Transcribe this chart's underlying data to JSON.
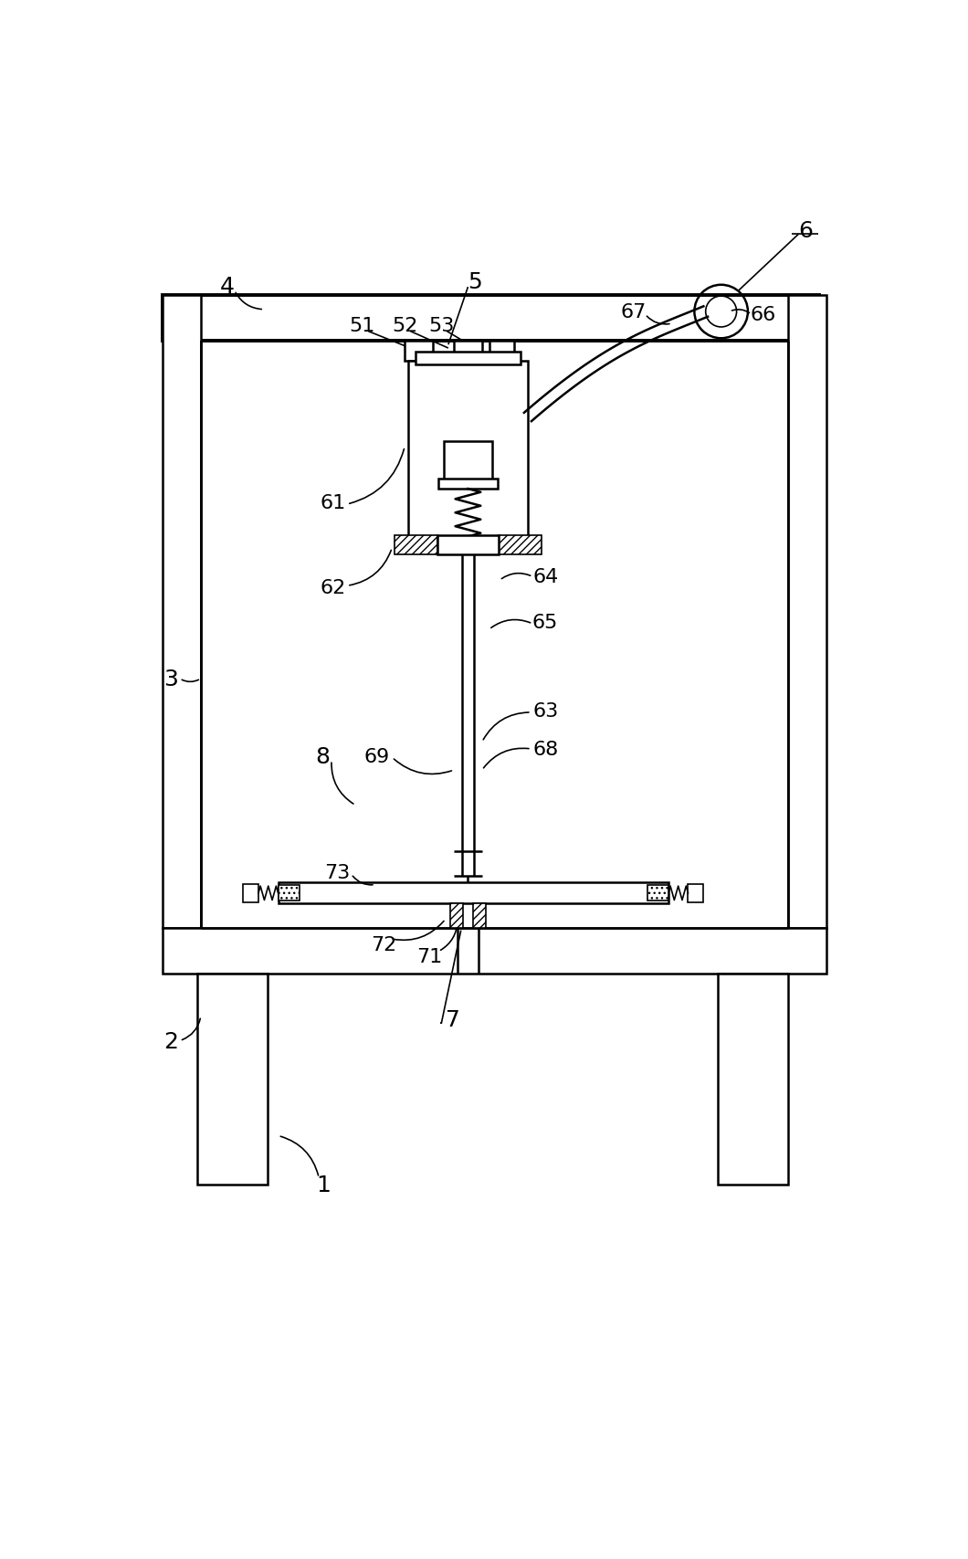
{
  "bg_color": "#ffffff",
  "lw_thick": 2.8,
  "lw_medium": 1.8,
  "lw_thin": 1.2,
  "lw_vthin": 0.8,
  "fig_w": 10.6,
  "fig_h": 17.08
}
